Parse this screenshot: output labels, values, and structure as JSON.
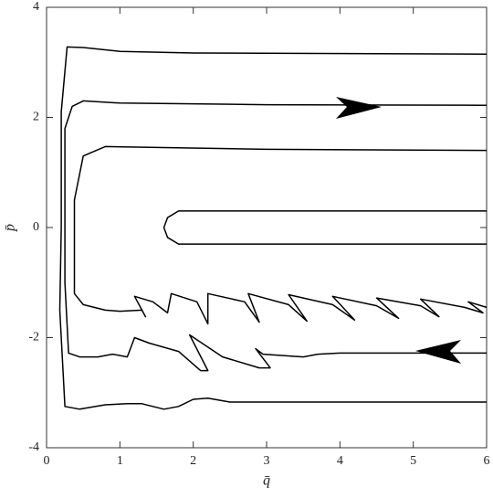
{
  "chart_data": {
    "type": "line",
    "x_label": "q̄",
    "y_label": "p̄",
    "xlim": [
      0,
      6
    ],
    "ylim": [
      -4,
      4
    ],
    "xticks": [
      0,
      1,
      2,
      3,
      4,
      5,
      6
    ],
    "yticks": [
      -4,
      -2,
      0,
      2,
      4
    ],
    "series": [
      {
        "color": "#000000",
        "x": [
          6,
          2,
          1,
          0.5,
          0.28,
          0.2,
          0.2,
          0.18,
          0.25,
          0.45,
          0.8,
          1.1,
          1.3,
          1.6,
          1.8,
          2.0,
          2.2,
          2.5,
          4,
          6
        ],
        "values": [
          3.15,
          3.17,
          3.2,
          3.27,
          3.28,
          2.1,
          0,
          -1.5,
          -3.25,
          -3.3,
          -3.22,
          -3.2,
          -3.2,
          -3.3,
          -3.25,
          -3.12,
          -3.1,
          -3.17,
          -3.17,
          -3.17
        ]
      },
      {
        "color": "#000000",
        "x": [
          6,
          3,
          1,
          0.5,
          0.35,
          0.25,
          0.25,
          0.3,
          0.45,
          0.7,
          0.9,
          1.1,
          1.2,
          1.4,
          1.8,
          2.1,
          2.2,
          1.95,
          2.4,
          2.9,
          3.05,
          2.85,
          2.95,
          3.5,
          3.7,
          4,
          6
        ],
        "values": [
          2.22,
          2.23,
          2.26,
          2.3,
          2.2,
          1.8,
          -1.0,
          -2.28,
          -2.35,
          -2.35,
          -2.3,
          -2.35,
          -2.0,
          -2.1,
          -2.25,
          -2.6,
          -2.6,
          -1.95,
          -2.35,
          -2.55,
          -2.55,
          -2.2,
          -2.3,
          -2.35,
          -2.3,
          -2.28,
          -2.28
        ]
      },
      {
        "color": "#000000",
        "x": [
          6,
          3,
          0.8,
          0.5,
          0.38,
          0.38,
          0.5,
          0.8,
          1.0,
          1.3,
          1.35,
          1.2,
          1.45,
          1.65,
          1.7,
          2.05,
          2.2,
          2.2,
          2.7,
          2.9,
          2.75,
          3.3,
          3.55,
          3.3,
          3.9,
          4.2,
          3.9,
          4.5,
          4.8,
          4.5,
          5.1,
          5.35,
          5.1,
          5.7,
          5.95,
          5.75,
          6
        ],
        "values": [
          1.4,
          1.42,
          1.47,
          1.3,
          0.5,
          -1.2,
          -1.4,
          -1.5,
          -1.52,
          -1.5,
          -1.62,
          -1.25,
          -1.35,
          -1.55,
          -1.2,
          -1.35,
          -1.75,
          -1.2,
          -1.35,
          -1.72,
          -1.2,
          -1.4,
          -1.7,
          -1.22,
          -1.4,
          -1.68,
          -1.25,
          -1.42,
          -1.65,
          -1.28,
          -1.42,
          -1.62,
          -1.3,
          -1.45,
          -1.55,
          -1.35,
          -1.45
        ]
      },
      {
        "color": "#000000",
        "x": [
          6,
          1.8,
          1.65,
          1.6,
          1.65,
          1.8,
          6
        ],
        "values": [
          0.3,
          0.3,
          0.18,
          0,
          -0.18,
          -0.3,
          -0.3
        ]
      }
    ]
  }
}
